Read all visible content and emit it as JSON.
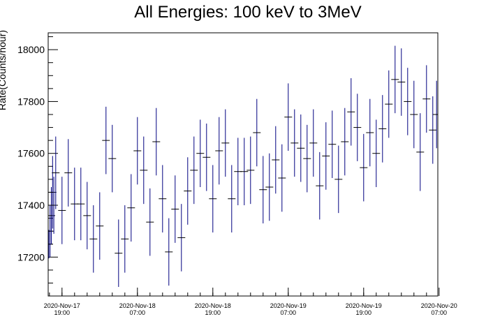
{
  "chart_data": {
    "type": "scatter",
    "title": "All Energies:  100 keV to 3MeV",
    "xlabel": "",
    "ylabel": "Rate(Counts/hour)",
    "ylim": [
      17050,
      18065
    ],
    "yticks": [
      17200,
      17400,
      17600,
      17800,
      18000
    ],
    "xticks": [
      {
        "date": "2020-Nov-17",
        "time": "19:00",
        "hour": 19
      },
      {
        "date": "2020-Nov-18",
        "time": "07:00",
        "hour": 31
      },
      {
        "date": "2020-Nov-18",
        "time": "19:00",
        "hour": 43
      },
      {
        "date": "2020-Nov-19",
        "time": "07:00",
        "hour": 55
      },
      {
        "date": "2020-Nov-19",
        "time": "19:00",
        "hour": 67
      },
      {
        "date": "2020-Nov-20",
        "time": "07:00",
        "hour": 79
      }
    ],
    "xlim_hours": [
      16.8,
      78.8
    ],
    "color": "#000080",
    "bin_width_hours": 1,
    "series": [
      {
        "name": "",
        "x_hours": [
          16.9,
          17.1,
          17.3,
          17.5,
          17.7,
          18.0,
          19.0,
          20.0,
          21.0,
          22.0,
          23.0,
          24.0,
          25.0,
          26.0,
          27.0,
          28.0,
          29.0,
          30.0,
          31.0,
          32.0,
          33.0,
          34.0,
          35.0,
          36.0,
          37.0,
          38.0,
          39.0,
          40.0,
          41.0,
          42.0,
          43.0,
          44.0,
          45.0,
          46.0,
          47.0,
          48.0,
          49.0,
          50.0,
          51.0,
          52.0,
          53.0,
          54.0,
          55.0,
          56.0,
          57.0,
          58.0,
          59.0,
          60.0,
          61.0,
          62.0,
          63.0,
          64.0,
          65.0,
          66.0,
          67.0,
          68.0,
          69.0,
          70.0,
          71.0,
          72.0,
          73.0,
          74.0,
          75.0,
          76.0,
          77.0,
          78.0
        ],
        "y": [
          17250,
          17300,
          17360,
          17450,
          17400,
          17525,
          17380,
          17525,
          17405,
          17405,
          17360,
          17270,
          17320,
          17650,
          17580,
          17215,
          17270,
          17390,
          17610,
          17535,
          17335,
          17645,
          17425,
          17220,
          17385,
          17275,
          17455,
          17535,
          17600,
          17585,
          17425,
          17610,
          17640,
          17425,
          17530,
          17530,
          17535,
          17680,
          17460,
          17470,
          17575,
          17505,
          17740,
          17640,
          17620,
          17580,
          17640,
          17475,
          17590,
          17635,
          17500,
          17645,
          17760,
          17700,
          17545,
          17680,
          17600,
          17695,
          17790,
          17885,
          17875,
          17800,
          17750,
          17605,
          17810,
          17690
        ],
        "err": [
          55,
          100,
          110,
          140,
          110,
          140,
          130,
          130,
          140,
          140,
          130,
          130,
          130,
          130,
          130,
          130,
          130,
          130,
          130,
          130,
          130,
          130,
          130,
          130,
          130,
          130,
          130,
          130,
          130,
          130,
          130,
          130,
          130,
          130,
          130,
          130,
          130,
          130,
          130,
          130,
          130,
          130,
          130,
          130,
          130,
          130,
          130,
          130,
          130,
          130,
          130,
          130,
          130,
          130,
          130,
          130,
          130,
          130,
          130,
          130,
          130,
          130,
          130,
          150,
          130,
          130
        ]
      },
      {
        "name": "",
        "x_hours": [
          78.6
        ],
        "y": [
          17750
        ],
        "err": [
          130
        ]
      }
    ]
  }
}
